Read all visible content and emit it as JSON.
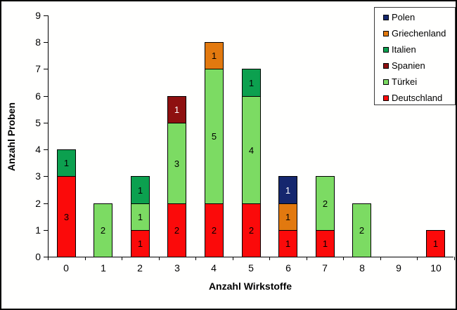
{
  "chart_data": {
    "type": "bar",
    "stacked": true,
    "title": "",
    "xlabel": "Anzahl Wirkstoffe",
    "ylabel": "Anzahl Proben",
    "categories": [
      "0",
      "1",
      "2",
      "3",
      "4",
      "5",
      "6",
      "7",
      "8",
      "9",
      "10"
    ],
    "ylim": [
      0,
      9
    ],
    "ytick_labels": [
      "0",
      "1",
      "2",
      "3",
      "4",
      "5",
      "6",
      "7",
      "8",
      "9"
    ],
    "grid": false,
    "legend_position": "top-right",
    "legend_order_top_to_bottom": [
      "Polen",
      "Griechenland",
      "Italien",
      "Spanien",
      "Türkei",
      "Deutschland"
    ],
    "series": [
      {
        "name": "Deutschland",
        "color": "#fb0a0a",
        "label_color": "#000000",
        "values": [
          3,
          0,
          1,
          2,
          2,
          2,
          1,
          1,
          0,
          0,
          1
        ]
      },
      {
        "name": "Türkei",
        "color": "#7cdb63",
        "label_color": "#000000",
        "values": [
          0,
          2,
          1,
          3,
          5,
          4,
          0,
          2,
          2,
          0,
          0
        ]
      },
      {
        "name": "Spanien",
        "color": "#8e1010",
        "label_color": "#ffffff",
        "values": [
          0,
          0,
          0,
          1,
          0,
          0,
          0,
          0,
          0,
          0,
          0
        ]
      },
      {
        "name": "Italien",
        "color": "#0ca04f",
        "label_color": "#000000",
        "values": [
          1,
          0,
          1,
          0,
          0,
          1,
          0,
          0,
          0,
          0,
          0
        ]
      },
      {
        "name": "Griechenland",
        "color": "#e2790f",
        "label_color": "#000000",
        "values": [
          0,
          0,
          0,
          0,
          1,
          0,
          1,
          0,
          0,
          0,
          0
        ]
      },
      {
        "name": "Polen",
        "color": "#15276e",
        "label_color": "#ffffff",
        "values": [
          0,
          0,
          0,
          0,
          0,
          0,
          1,
          0,
          0,
          0,
          0
        ]
      }
    ],
    "totals_per_category": [
      4,
      2,
      3,
      6,
      8,
      7,
      3,
      3,
      2,
      0,
      1
    ],
    "data_labels_shown_inside_segments": true
  }
}
